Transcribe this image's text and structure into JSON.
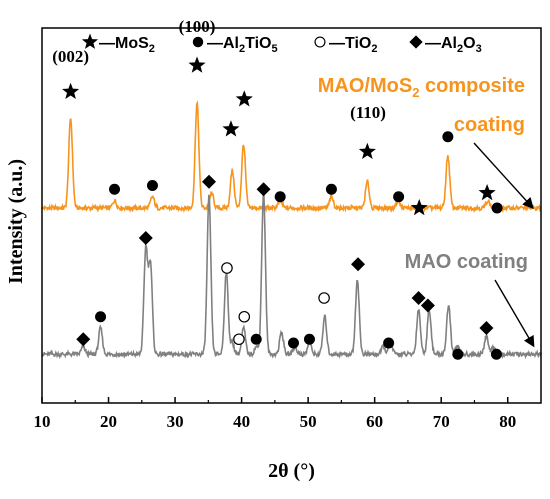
{
  "chart_data": {
    "type": "line",
    "xlabel": "2θ (°)",
    "ylabel": "Intensity (a.u.)",
    "xlim": [
      10,
      85
    ],
    "x_ticks": [
      "10",
      "20",
      "30",
      "40",
      "50",
      "60",
      "70",
      "80"
    ],
    "legend": [
      {
        "marker": "star",
        "text": "—MoS",
        "sub": "2",
        "tail": ""
      },
      {
        "marker": "dot",
        "text": "—Al",
        "sub": "2",
        "tail": "TiO",
        "sub2": "5"
      },
      {
        "marker": "circle",
        "text": "—TiO",
        "sub": "2",
        "tail": ""
      },
      {
        "marker": "diamond",
        "text": "—Al",
        "sub": "2",
        "tail": "O",
        "sub2": "3"
      }
    ],
    "series": [
      {
        "label_line1": "MAO/MoS",
        "label_line1_sub": "2",
        "label_line1_tail": " composite",
        "label_line2": "coating",
        "color": "#F7941D",
        "baseline": 0.52,
        "peaks": [
          {
            "x": 14.3,
            "h": 0.24
          },
          {
            "x": 20.9,
            "h": 0.02
          },
          {
            "x": 26.6,
            "h": 0.03
          },
          {
            "x": 33.3,
            "h": 0.28
          },
          {
            "x": 35.5,
            "h": 0.04
          },
          {
            "x": 38.6,
            "h": 0.1
          },
          {
            "x": 40.3,
            "h": 0.17
          },
          {
            "x": 45.8,
            "h": 0.02
          },
          {
            "x": 53.5,
            "h": 0.03
          },
          {
            "x": 58.9,
            "h": 0.07
          },
          {
            "x": 63.5,
            "h": 0.02
          },
          {
            "x": 71.0,
            "h": 0.14
          },
          {
            "x": 77.0,
            "h": 0.02
          }
        ]
      },
      {
        "label_line1": "MAO coating",
        "color": "#808080",
        "baseline": 0.13,
        "peaks": [
          {
            "x": 16.2,
            "h": 0.02
          },
          {
            "x": 18.8,
            "h": 0.07
          },
          {
            "x": 25.6,
            "h": 0.28
          },
          {
            "x": 26.3,
            "h": 0.24
          },
          {
            "x": 35.1,
            "h": 0.42
          },
          {
            "x": 37.7,
            "h": 0.22
          },
          {
            "x": 38.6,
            "h": 0.03
          },
          {
            "x": 40.3,
            "h": 0.07
          },
          {
            "x": 42.2,
            "h": 0.02
          },
          {
            "x": 43.3,
            "h": 0.43
          },
          {
            "x": 46.0,
            "h": 0.06
          },
          {
            "x": 48.0,
            "h": 0.02
          },
          {
            "x": 50.2,
            "h": 0.03
          },
          {
            "x": 52.5,
            "h": 0.1
          },
          {
            "x": 57.4,
            "h": 0.2
          },
          {
            "x": 61.3,
            "h": 0.02
          },
          {
            "x": 62.4,
            "h": 0.03
          },
          {
            "x": 66.6,
            "h": 0.12
          },
          {
            "x": 68.2,
            "h": 0.12
          },
          {
            "x": 71.1,
            "h": 0.13
          },
          {
            "x": 72.4,
            "h": 0.02
          },
          {
            "x": 76.8,
            "h": 0.05
          },
          {
            "x": 77.9,
            "h": 0.02
          }
        ]
      }
    ],
    "peak_markers": [
      {
        "x": 14.3,
        "y": 0.83,
        "type": "star"
      },
      {
        "x": 20.9,
        "y": 0.57,
        "type": "dot"
      },
      {
        "x": 26.6,
        "y": 0.58,
        "type": "dot"
      },
      {
        "x": 33.3,
        "y": 0.9,
        "type": "star"
      },
      {
        "x": 38.4,
        "y": 0.73,
        "type": "star"
      },
      {
        "x": 40.4,
        "y": 0.81,
        "type": "star"
      },
      {
        "x": 45.8,
        "y": 0.55,
        "type": "dot"
      },
      {
        "x": 53.5,
        "y": 0.57,
        "type": "dot"
      },
      {
        "x": 58.9,
        "y": 0.67,
        "type": "star"
      },
      {
        "x": 63.6,
        "y": 0.55,
        "type": "dot"
      },
      {
        "x": 66.7,
        "y": 0.52,
        "type": "star"
      },
      {
        "x": 71.0,
        "y": 0.71,
        "type": "dot"
      },
      {
        "x": 76.9,
        "y": 0.56,
        "type": "star"
      },
      {
        "x": 78.4,
        "y": 0.52,
        "type": "dot"
      },
      {
        "x": 16.2,
        "y": 0.17,
        "type": "diamond"
      },
      {
        "x": 18.8,
        "y": 0.23,
        "type": "dot"
      },
      {
        "x": 25.6,
        "y": 0.44,
        "type": "diamond"
      },
      {
        "x": 35.1,
        "y": 0.59,
        "type": "diamond"
      },
      {
        "x": 37.8,
        "y": 0.36,
        "type": "circle"
      },
      {
        "x": 39.6,
        "y": 0.17,
        "type": "circle"
      },
      {
        "x": 40.4,
        "y": 0.23,
        "type": "circle"
      },
      {
        "x": 42.2,
        "y": 0.17,
        "type": "dot"
      },
      {
        "x": 43.3,
        "y": 0.57,
        "type": "diamond"
      },
      {
        "x": 47.8,
        "y": 0.16,
        "type": "dot"
      },
      {
        "x": 50.2,
        "y": 0.17,
        "type": "dot"
      },
      {
        "x": 52.4,
        "y": 0.28,
        "type": "circle"
      },
      {
        "x": 57.5,
        "y": 0.37,
        "type": "diamond"
      },
      {
        "x": 62.1,
        "y": 0.16,
        "type": "dot"
      },
      {
        "x": 66.6,
        "y": 0.28,
        "type": "diamond"
      },
      {
        "x": 68.0,
        "y": 0.26,
        "type": "diamond"
      },
      {
        "x": 72.5,
        "y": 0.13,
        "type": "dot"
      },
      {
        "x": 76.8,
        "y": 0.2,
        "type": "diamond"
      },
      {
        "x": 78.3,
        "y": 0.13,
        "type": "dot"
      }
    ],
    "peak_labels": [
      {
        "x": 14.3,
        "y": 0.91,
        "text": "(002)"
      },
      {
        "x": 33.3,
        "y": 0.99,
        "text": "(100)"
      },
      {
        "x": 59.0,
        "y": 0.76,
        "text": "(110)"
      }
    ],
    "grid": false
  }
}
